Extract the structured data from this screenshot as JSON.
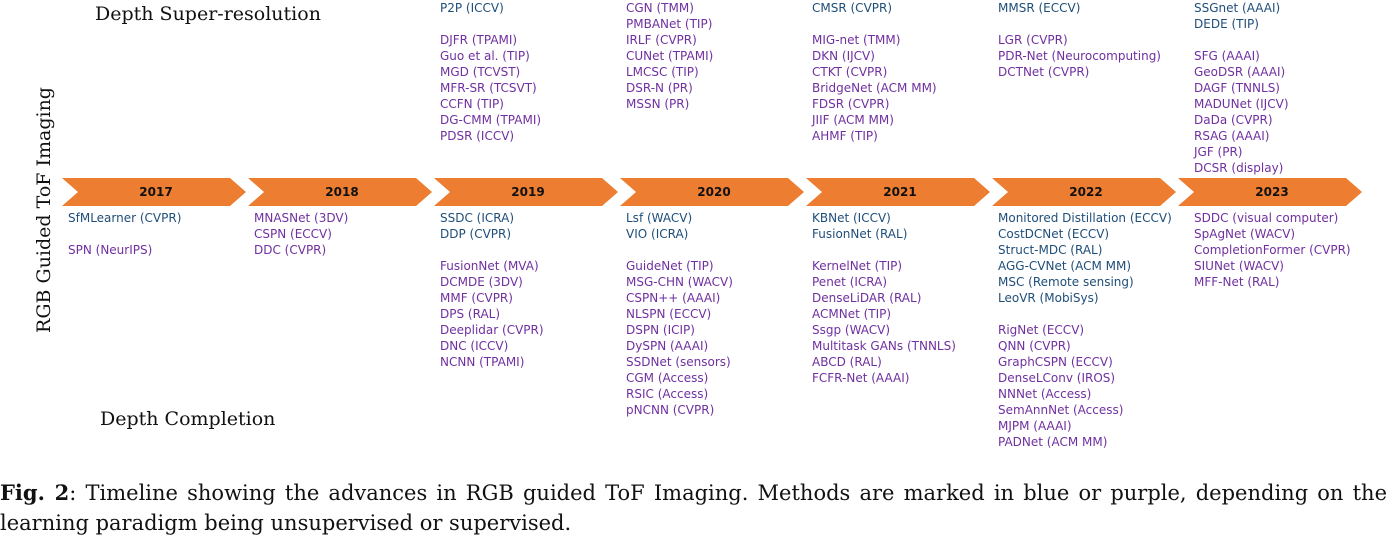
{
  "titles": {
    "super_resolution": "Depth Super-resolution",
    "completion": "Depth Completion",
    "vertical": "RGB Guided ToF Imaging"
  },
  "colors": {
    "arrow": "#ED7D31",
    "unsupervised": "#1F4E79",
    "supervised": "#7030A0"
  },
  "years": [
    "2017",
    "2018",
    "2019",
    "2020",
    "2021",
    "2022",
    "2023"
  ],
  "super_resolution": [
    [],
    [],
    [
      {
        "name": "P2P (ICCV)",
        "type": "u"
      },
      {
        "gap": true
      },
      {
        "name": "DJFR (TPAMI)",
        "type": "s"
      },
      {
        "name": "Guo et al. (TIP)",
        "type": "s"
      },
      {
        "name": "MGD (TCVST)",
        "type": "s"
      },
      {
        "name": "MFR-SR (TCSVT)",
        "type": "s"
      },
      {
        "name": "CCFN (TIP)",
        "type": "s"
      },
      {
        "name": "DG-CMM (TPAMI)",
        "type": "s"
      },
      {
        "name": "PDSR (ICCV)",
        "type": "s"
      }
    ],
    [
      {
        "name": "CGN (TMM)",
        "type": "s"
      },
      {
        "name": "PMBANet (TIP)",
        "type": "s"
      },
      {
        "name": "IRLF (CVPR)",
        "type": "s"
      },
      {
        "name": "CUNet (TPAMI)",
        "type": "s"
      },
      {
        "name": "LMCSC (TIP)",
        "type": "s"
      },
      {
        "name": "DSR-N (PR)",
        "type": "s"
      },
      {
        "name": "MSSN (PR)",
        "type": "s"
      }
    ],
    [
      {
        "name": "CMSR (CVPR)",
        "type": "u"
      },
      {
        "gap": true
      },
      {
        "name": "MIG-net (TMM)",
        "type": "s"
      },
      {
        "name": "DKN (IJCV)",
        "type": "s"
      },
      {
        "name": "CTKT (CVPR)",
        "type": "s"
      },
      {
        "name": "BridgeNet (ACM MM)",
        "type": "s"
      },
      {
        "name": "FDSR (CVPR)",
        "type": "s"
      },
      {
        "name": "JIIF (ACM MM)",
        "type": "s"
      },
      {
        "name": "AHMF (TIP)",
        "type": "s"
      }
    ],
    [
      {
        "name": "MMSR (ECCV)",
        "type": "u"
      },
      {
        "gap": true
      },
      {
        "name": "LGR (CVPR)",
        "type": "s"
      },
      {
        "name": "PDR-Net (Neurocomputing)",
        "type": "s"
      },
      {
        "name": "DCTNet (CVPR)",
        "type": "s"
      }
    ],
    [
      {
        "name": "SSGnet (AAAI)",
        "type": "u"
      },
      {
        "name": "DEDE (TIP)",
        "type": "u"
      },
      {
        "gap": true
      },
      {
        "name": "SFG (AAAI)",
        "type": "s"
      },
      {
        "name": "GeoDSR (AAAI)",
        "type": "s"
      },
      {
        "name": "DAGF (TNNLS)",
        "type": "s"
      },
      {
        "name": "MADUNet (IJCV)",
        "type": "s"
      },
      {
        "name": "DaDa (CVPR)",
        "type": "s"
      },
      {
        "name": "RSAG (AAAI)",
        "type": "s"
      },
      {
        "name": "JGF (PR)",
        "type": "s"
      },
      {
        "name": "DCSR (display)",
        "type": "s"
      }
    ]
  ],
  "completion": [
    [
      {
        "name": "SfMLearner (CVPR)",
        "type": "u"
      },
      {
        "gap": true
      },
      {
        "name": "SPN (NeurIPS)",
        "type": "s"
      }
    ],
    [
      {
        "name": "MNASNet (3DV)",
        "type": "s"
      },
      {
        "name": "CSPN (ECCV)",
        "type": "s"
      },
      {
        "name": "DDC (CVPR)",
        "type": "s"
      }
    ],
    [
      {
        "name": "SSDC (ICRA)",
        "type": "u"
      },
      {
        "name": "DDP (CVPR)",
        "type": "u"
      },
      {
        "gap": true
      },
      {
        "name": "FusionNet (MVA)",
        "type": "s"
      },
      {
        "name": "DCMDE (3DV)",
        "type": "s"
      },
      {
        "name": "MMF (CVPR)",
        "type": "s"
      },
      {
        "name": "DPS (RAL)",
        "type": "s"
      },
      {
        "name": "Deeplidar (CVPR)",
        "type": "s"
      },
      {
        "name": "DNC (ICCV)",
        "type": "s"
      },
      {
        "name": "NCNN (TPAMI)",
        "type": "s"
      }
    ],
    [
      {
        "name": "Lsf (WACV)",
        "type": "u"
      },
      {
        "name": "VIO (ICRA)",
        "type": "u"
      },
      {
        "gap": true
      },
      {
        "name": "GuideNet (TIP)",
        "type": "s"
      },
      {
        "name": "MSG-CHN (WACV)",
        "type": "s"
      },
      {
        "name": "CSPN++ (AAAI)",
        "type": "s"
      },
      {
        "name": "NLSPN (ECCV)",
        "type": "s"
      },
      {
        "name": "DSPN (ICIP)",
        "type": "s"
      },
      {
        "name": "DySPN (AAAI)",
        "type": "s"
      },
      {
        "name": "SSDNet (sensors)",
        "type": "s"
      },
      {
        "name": "CGM (Access)",
        "type": "s"
      },
      {
        "name": "RSIC (Access)",
        "type": "s"
      },
      {
        "name": "pNCNN (CVPR)",
        "type": "s"
      }
    ],
    [
      {
        "name": "KBNet (ICCV)",
        "type": "u"
      },
      {
        "name": "FusionNet (RAL)",
        "type": "u"
      },
      {
        "gap": true
      },
      {
        "name": "KernelNet (TIP)",
        "type": "s"
      },
      {
        "name": "Penet (ICRA)",
        "type": "s"
      },
      {
        "name": "DenseLiDAR (RAL)",
        "type": "s"
      },
      {
        "name": "ACMNet (TIP)",
        "type": "s"
      },
      {
        "name": "Ssgp (WACV)",
        "type": "s"
      },
      {
        "name": "Multitask GANs (TNNLS)",
        "type": "s"
      },
      {
        "name": "ABCD (RAL)",
        "type": "s"
      },
      {
        "name": "FCFR-Net (AAAI)",
        "type": "s"
      }
    ],
    [
      {
        "name": "Monitored Distillation (ECCV)",
        "type": "u"
      },
      {
        "name": "CostDCNet (ECCV)",
        "type": "u"
      },
      {
        "name": "Struct-MDC (RAL)",
        "type": "u"
      },
      {
        "name": "AGG-CVNet (ACM MM)",
        "type": "u"
      },
      {
        "name": "MSC (Remote sensing)",
        "type": "u"
      },
      {
        "name": "LeoVR (MobiSys)",
        "type": "u"
      },
      {
        "gap": true
      },
      {
        "name": "RigNet (ECCV)",
        "type": "s"
      },
      {
        "name": "QNN (CVPR)",
        "type": "s"
      },
      {
        "name": "GraphCSPN (ECCV)",
        "type": "s"
      },
      {
        "name": "DenseLConv (IROS)",
        "type": "s"
      },
      {
        "name": "NNNet (Access)",
        "type": "s"
      },
      {
        "name": "SemAnnNet (Access)",
        "type": "s"
      },
      {
        "name": "MJPM (AAAI)",
        "type": "s"
      },
      {
        "name": "PADNet (ACM MM)",
        "type": "s"
      }
    ],
    [
      {
        "name": "SDDC (visual computer)",
        "type": "s"
      },
      {
        "name": "SpAgNet (WACV)",
        "type": "s"
      },
      {
        "name": "CompletionFormer (CVPR)",
        "type": "s"
      },
      {
        "name": "SIUNet (WACV)",
        "type": "s"
      },
      {
        "name": "MFF-Net (RAL)",
        "type": "s"
      }
    ]
  ],
  "caption": {
    "label": "Fig. 2",
    "text": ": Timeline showing the advances in RGB guided ToF Imaging. Methods are marked in blue or purple, depending on the learning paradigm being unsupervised or supervised."
  }
}
